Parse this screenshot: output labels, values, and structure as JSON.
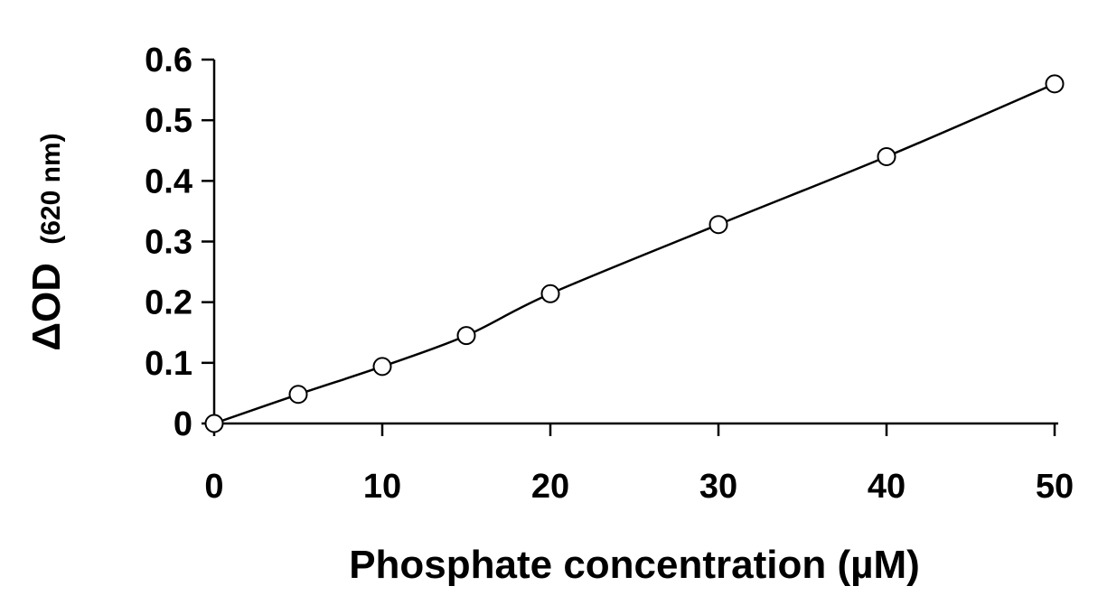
{
  "chart_data": {
    "type": "scatter",
    "title": "",
    "xlabel": "Phosphate concentration (µM)",
    "ylabel_main": "ΔOD",
    "ylabel_sub": "(620 nm)",
    "xlim": [
      0,
      50
    ],
    "ylim": [
      0,
      0.6
    ],
    "x_ticks": [
      0,
      10,
      20,
      30,
      40,
      50
    ],
    "x_tick_labels": [
      "0",
      "10",
      "20",
      "30",
      "40",
      "50"
    ],
    "y_ticks": [
      0,
      0.1,
      0.2,
      0.3,
      0.4,
      0.5,
      0.6
    ],
    "y_tick_labels": [
      "0",
      "0.1",
      "0.2",
      "0.3",
      "0.4",
      "0.5",
      "0.6"
    ],
    "grid": false,
    "legend": "none",
    "marker": "open-circle",
    "fit_line": "solid black smooth fit through points",
    "series": [
      {
        "x": [
          0,
          5,
          10,
          15,
          20,
          30,
          40,
          50
        ],
        "y": [
          0.0,
          0.048,
          0.094,
          0.145,
          0.214,
          0.328,
          0.44,
          0.56
        ]
      }
    ],
    "colors": {
      "axis": "#000000",
      "marker": "#000000",
      "line": "#000000"
    }
  }
}
